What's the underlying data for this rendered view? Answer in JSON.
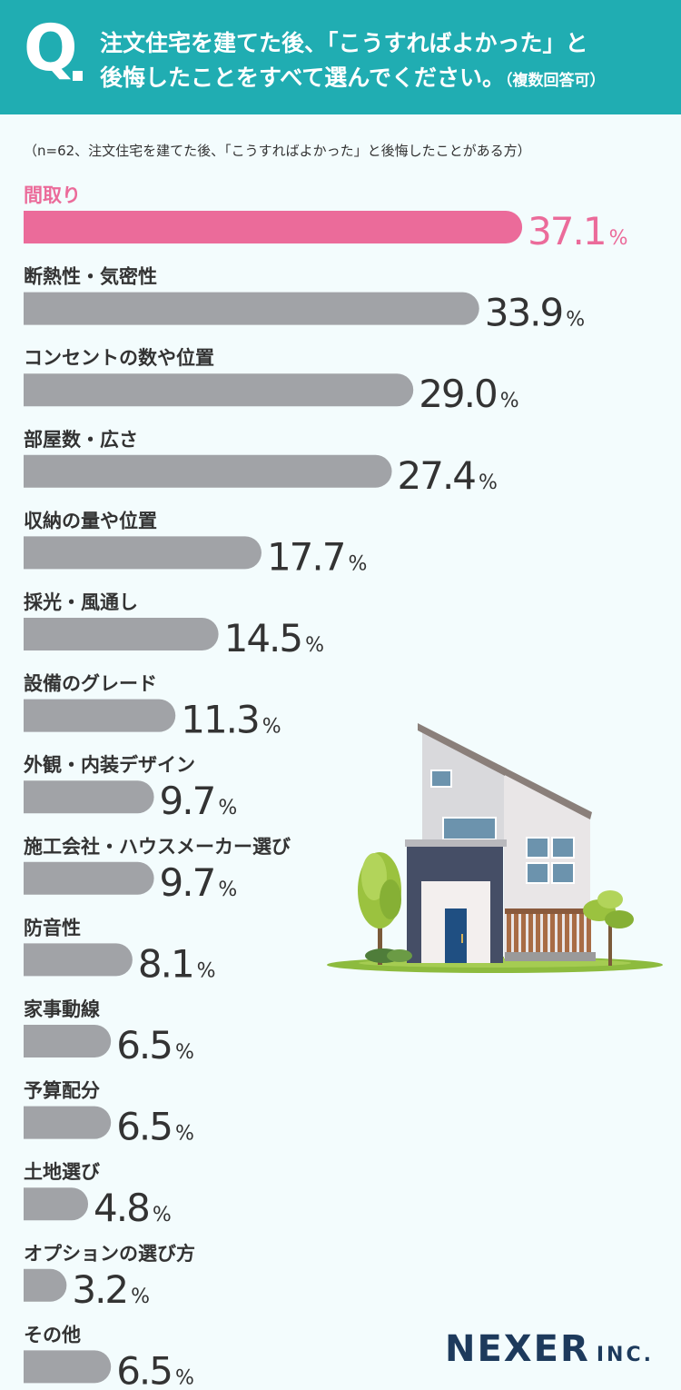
{
  "header": {
    "q_mark": "Q",
    "line1": "注文住宅を建てた後、「こうすればよかった」と",
    "line2": "後悔したことをすべて選んでください。",
    "line2_paren": "（複数回答可）"
  },
  "note": "（n=62、注文住宅を建てた後、「こうすればよかった」と後悔したことがある方）",
  "colors": {
    "header_bg": "#20adb2",
    "highlight": "#eb6b9a",
    "bar": "#a1a3a7",
    "value_text": "#333333",
    "logo": "#1d3a5c"
  },
  "logo": {
    "main": "NEXER",
    "sub": "INC."
  },
  "chart_data": {
    "type": "bar",
    "orientation": "horizontal",
    "unit": "%",
    "categories": [
      "間取り",
      "断熱性・気密性",
      "コンセントの数や位置",
      "部屋数・広さ",
      "収納の量や位置",
      "採光・風通し",
      "設備のグレード",
      "外観・内装デザイン",
      "施工会社・ハウスメーカー選び",
      "防音性",
      "家事動線",
      "予算配分",
      "土地選び",
      "オプションの選び方",
      "その他"
    ],
    "values": [
      37.1,
      33.9,
      29.0,
      27.4,
      17.7,
      14.5,
      11.3,
      9.7,
      9.7,
      8.1,
      6.5,
      6.5,
      4.8,
      3.2,
      6.5
    ],
    "value_labels": [
      "37.1",
      "33.9",
      "29.0",
      "27.4",
      "17.7",
      "14.5",
      "11.3",
      "9.7",
      "9.7",
      "8.1",
      "6.5",
      "6.5",
      "4.8",
      "3.2",
      "6.5"
    ],
    "highlight_index": 0
  }
}
